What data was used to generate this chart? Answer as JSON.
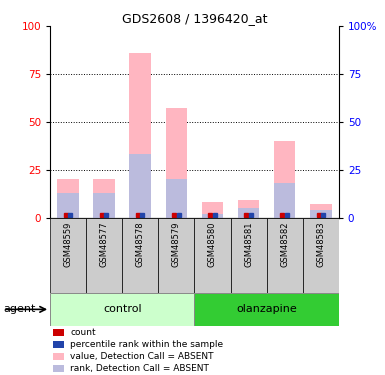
{
  "title": "GDS2608 / 1396420_at",
  "samples": [
    "GSM48559",
    "GSM48577",
    "GSM48578",
    "GSM48579",
    "GSM48580",
    "GSM48581",
    "GSM48582",
    "GSM48583"
  ],
  "pink_values": [
    20,
    20,
    86,
    57,
    8,
    9,
    40,
    7
  ],
  "blue_values": [
    13,
    13,
    33,
    20,
    2,
    5,
    18,
    4
  ],
  "ylim": [
    0,
    100
  ],
  "yticks": [
    0,
    25,
    50,
    75,
    100
  ],
  "color_pink": "#FFB6C1",
  "color_blue_bar": "#BBBBDD",
  "color_red": "#CC0000",
  "color_blue_dot": "#2244AA",
  "control_bg_light": "#CCFFCC",
  "olanzapine_bg_dark": "#33CC33",
  "bar_bg": "#CCCCCC",
  "group_label_control": "control",
  "group_label_olanzapine": "olanzapine",
  "agent_label": "agent",
  "legend_items": [
    {
      "color": "#CC0000",
      "label": "count"
    },
    {
      "color": "#2244AA",
      "label": "percentile rank within the sample"
    },
    {
      "color": "#FFB6C1",
      "label": "value, Detection Call = ABSENT"
    },
    {
      "color": "#BBBBDD",
      "label": "rank, Detection Call = ABSENT"
    }
  ]
}
